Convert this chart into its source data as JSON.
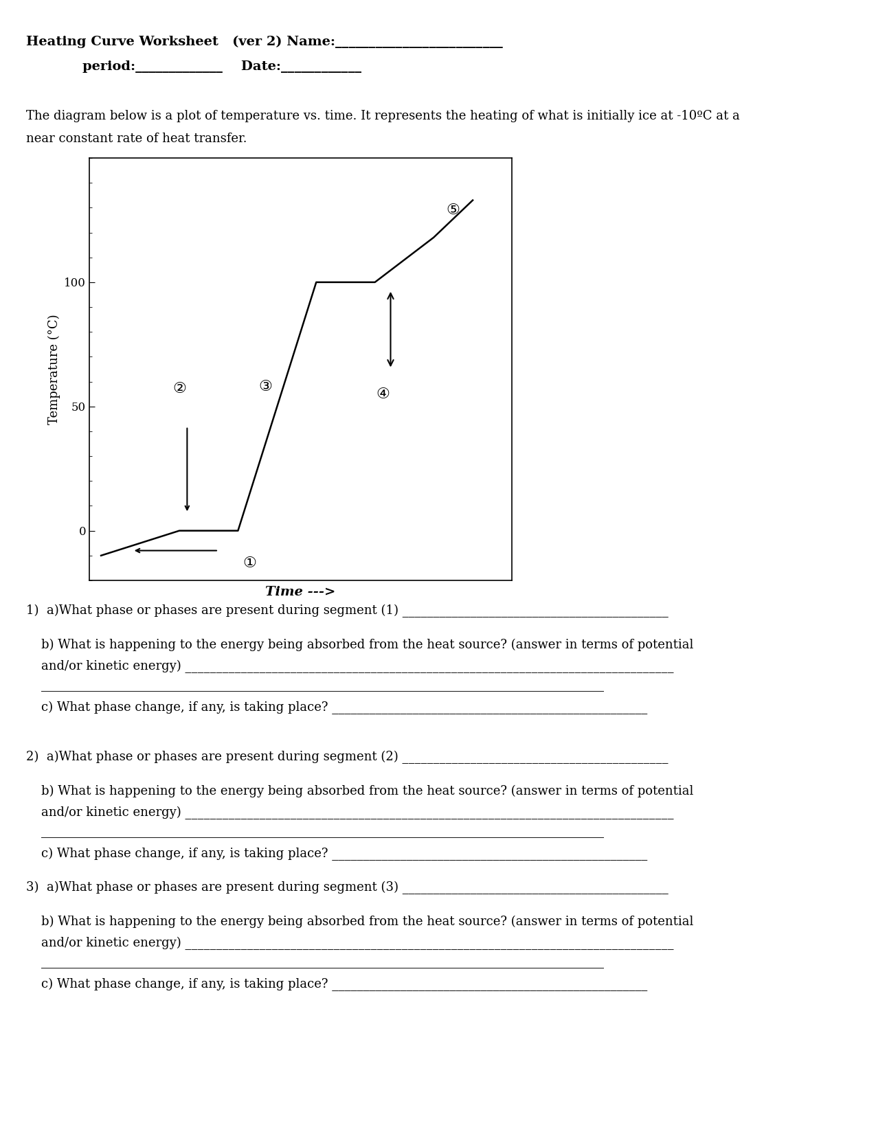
{
  "title_line1": "Heating Curve Worksheet   (ver 2) Name:_________________________",
  "title_line2": "period:_____________    Date:____________",
  "description": "The diagram below is a plot of temperature vs. time. It represents the heating of what is initially ice at -10ºC at a near constant rate of heat transfer.",
  "graph_ylabel": "Temperature (°C)",
  "graph_xlabel": "Time --->",
  "curve_x": [
    0,
    2.0,
    3.5,
    5.5,
    7.0,
    8.5,
    9.5
  ],
  "curve_y": [
    -10,
    0,
    0,
    100,
    100,
    118,
    133
  ],
  "ylim": [
    -20,
    150
  ],
  "xlim": [
    -0.3,
    10.5
  ],
  "yticks": [
    0,
    50,
    100
  ],
  "bg_color": "#ffffff",
  "text_color": "#000000",
  "font_family": "DejaVu Serif",
  "title_fontsize": 14,
  "body_fontsize": 13
}
